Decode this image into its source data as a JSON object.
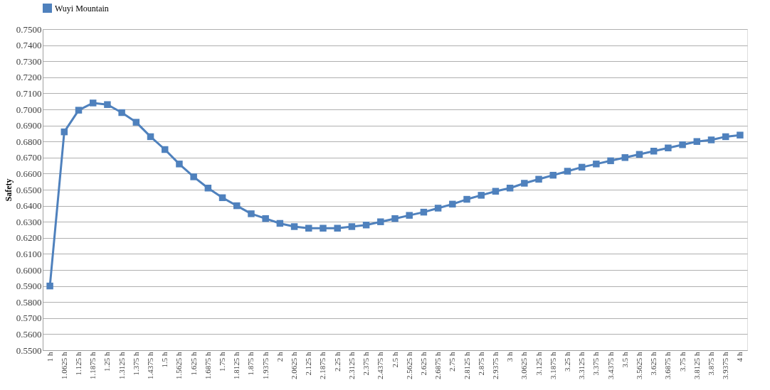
{
  "chart_data": {
    "type": "line",
    "ylabel": "Safety",
    "categories": [
      "1 h",
      "1.0625 h",
      "1.125 h",
      "1.1875 h",
      "1.25 h",
      "1.3125 h",
      "1.375 h",
      "1.4375 h",
      "1.5 h",
      "1.5625 h",
      "1.625 h",
      "1.6875 h",
      "1.75 h",
      "1.8125 h",
      "1.875 h",
      "1.9375 h",
      "2 h",
      "2.0625 h",
      "2.125 h",
      "2.1875 h",
      "2.25 h",
      "2.3125 h",
      "2.375 h",
      "2.4375 h",
      "2.5 h",
      "2.5625 h",
      "2.625 h",
      "2.6875 h",
      "2.75 h",
      "2.8125 h",
      "2.875 h",
      "2.9375 h",
      "3 h",
      "3.0625 h",
      "3.125 h",
      "3.1875 h",
      "3.25 h",
      "3.3125 h",
      "3.375 h",
      "3.4375 h",
      "3.5 h",
      "3.5625 h",
      "3.625 h",
      "3.6875 h",
      "3.75 h",
      "3.8125 h",
      "3.875 h",
      "3.9375 h",
      "4 h"
    ],
    "series": [
      {
        "name": "Wuyi Mountain",
        "color": "#4f81bd",
        "values": [
          0.59,
          0.686,
          0.6995,
          0.704,
          0.703,
          0.698,
          0.692,
          0.683,
          0.675,
          0.666,
          0.658,
          0.651,
          0.645,
          0.64,
          0.635,
          0.632,
          0.629,
          0.627,
          0.626,
          0.626,
          0.626,
          0.627,
          0.628,
          0.63,
          0.632,
          0.634,
          0.636,
          0.6385,
          0.641,
          0.644,
          0.6465,
          0.649,
          0.651,
          0.654,
          0.6565,
          0.659,
          0.6615,
          0.664,
          0.666,
          0.668,
          0.67,
          0.672,
          0.674,
          0.676,
          0.678,
          0.68,
          0.681,
          0.683,
          0.684
        ]
      }
    ],
    "ylim": [
      0.55,
      0.75
    ],
    "yticks": [
      {
        "value": 0.55,
        "label": "0.5500"
      },
      {
        "value": 0.56,
        "label": "0.5600"
      },
      {
        "value": 0.57,
        "label": "0.5700"
      },
      {
        "value": 0.58,
        "label": "0.5800"
      },
      {
        "value": 0.59,
        "label": "0.5900"
      },
      {
        "value": 0.6,
        "label": "0.6000"
      },
      {
        "value": 0.61,
        "label": "0.6100"
      },
      {
        "value": 0.62,
        "label": "0.6200"
      },
      {
        "value": 0.63,
        "label": "0.6300"
      },
      {
        "value": 0.64,
        "label": "0.6400"
      },
      {
        "value": 0.65,
        "label": "0.6500"
      },
      {
        "value": 0.66,
        "label": "0.6600"
      },
      {
        "value": 0.67,
        "label": "0.6700"
      },
      {
        "value": 0.68,
        "label": "0.6800"
      },
      {
        "value": 0.69,
        "label": "0.6900"
      },
      {
        "value": 0.7,
        "label": "0.7000"
      },
      {
        "value": 0.71,
        "label": "0.7100"
      },
      {
        "value": 0.72,
        "label": "0.7200"
      },
      {
        "value": 0.73,
        "label": "0.7300"
      },
      {
        "value": 0.74,
        "label": "0.7400"
      },
      {
        "value": 0.75,
        "label": "0.7500"
      }
    ],
    "grid": "y",
    "legend": "top",
    "marker": "square",
    "line_style": "solid"
  }
}
